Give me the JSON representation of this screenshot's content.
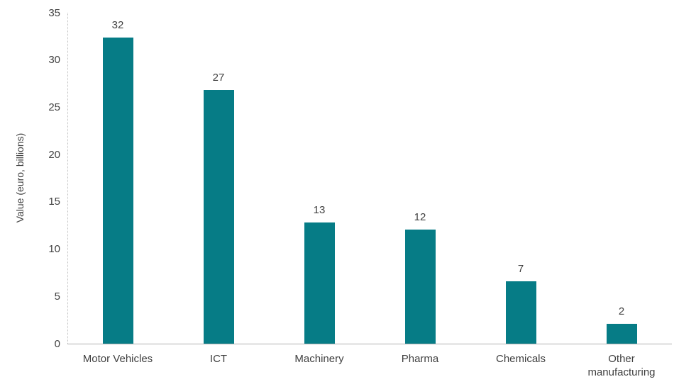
{
  "chart_data": {
    "type": "bar",
    "categories": [
      "Motor Vehicles",
      "ICT",
      "Machinery",
      "Pharma",
      "Chemicals",
      "Other manufacturing"
    ],
    "values": [
      32,
      27,
      13,
      12,
      7,
      2
    ],
    "bar_heights_precise": [
      32.4,
      26.8,
      12.8,
      12.1,
      6.6,
      2.1
    ],
    "title": "",
    "xlabel": "",
    "ylabel": "Value (euro, billions)",
    "ylim": [
      0,
      35
    ],
    "yticks": [
      0,
      5,
      10,
      15,
      20,
      25,
      30,
      35
    ],
    "grid": "off",
    "legend": "none",
    "colors": {
      "bar": "#067c86",
      "text": "#404040",
      "y_axis_line": "#bfbfbf",
      "x_axis_line": "#b0b0b0"
    }
  }
}
